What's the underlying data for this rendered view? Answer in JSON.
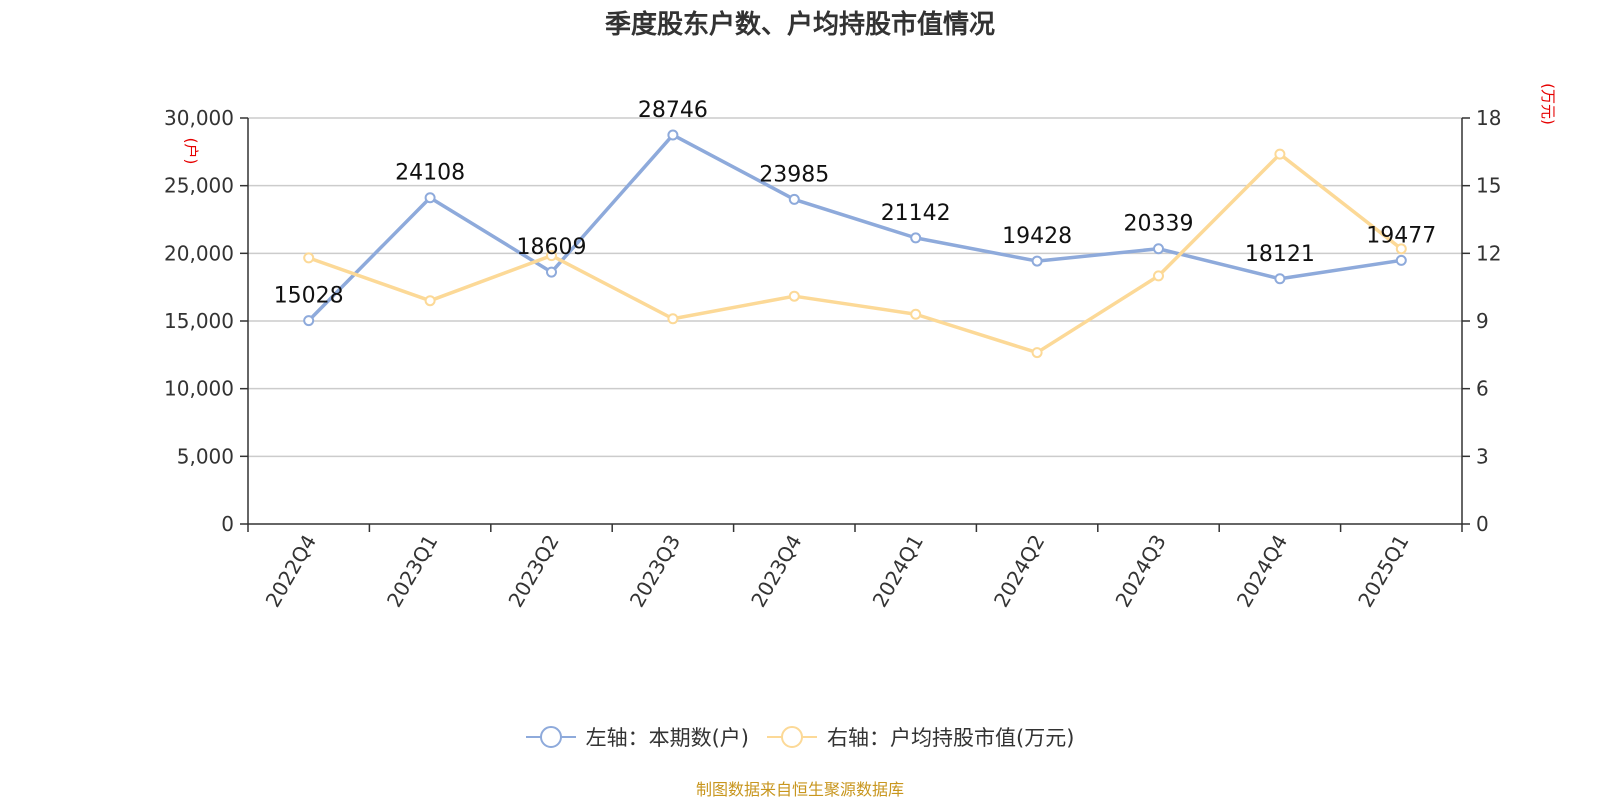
{
  "title": "季度股东户数、户均持股市值情况",
  "source": "制图数据来自恒生聚源数据库",
  "legend": [
    {
      "label": "左轴：本期数(户)",
      "color": "#8eaadb"
    },
    {
      "label": "右轴：户均持股市值(万元)",
      "color": "#fcd997"
    }
  ],
  "chart_data": {
    "type": "line",
    "categories": [
      "2022Q4",
      "2023Q1",
      "2023Q2",
      "2023Q3",
      "2023Q4",
      "2024Q1",
      "2024Q2",
      "2024Q3",
      "2024Q4",
      "2025Q1"
    ],
    "left_axis": {
      "unit": "(户)",
      "ylim": [
        0,
        30000
      ],
      "ticks": [
        0,
        5000,
        10000,
        15000,
        20000,
        25000,
        30000
      ],
      "tick_labels": [
        "0",
        "5,000",
        "10,000",
        "15,000",
        "20,000",
        "25,000",
        "30,000"
      ]
    },
    "right_axis": {
      "unit": "(万元)",
      "ylim": [
        0,
        18
      ],
      "ticks": [
        0,
        3,
        6,
        9,
        12,
        15,
        18
      ],
      "tick_labels": [
        "0",
        "3",
        "6",
        "9",
        "12",
        "15",
        "18"
      ]
    },
    "series": [
      {
        "name": "左轴：本期数(户)",
        "axis": "left",
        "color": "#8eaadb",
        "values": [
          15028,
          24108,
          18609,
          28746,
          23985,
          21142,
          19428,
          20339,
          18121,
          19477
        ],
        "labels": [
          "15028",
          "24108",
          "18609",
          "28746",
          "23985",
          "21142",
          "19428",
          "20339",
          "18121",
          "19477"
        ]
      },
      {
        "name": "右轴：户均持股市值(万元)",
        "axis": "right",
        "color": "#fcd997",
        "values": [
          11.8,
          9.9,
          11.9,
          9.1,
          10.1,
          9.3,
          7.6,
          11.0,
          16.4,
          12.2
        ]
      }
    ],
    "grid": true,
    "legend_position": "bottom"
  }
}
